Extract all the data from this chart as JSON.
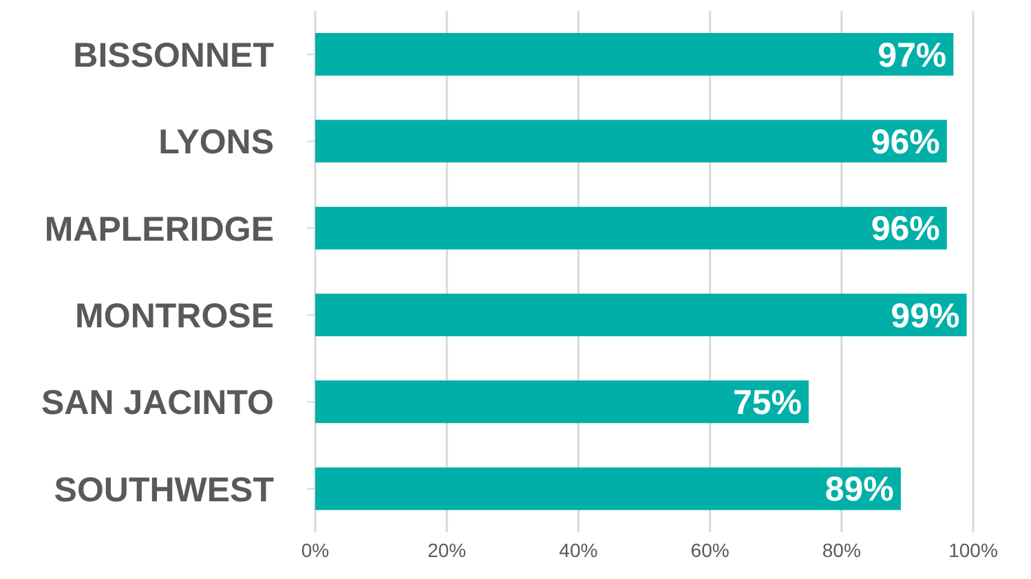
{
  "chart_data": {
    "type": "bar",
    "orientation": "horizontal",
    "categories": [
      "BISSONNET",
      "LYONS",
      "MAPLERIDGE",
      "MONTROSE",
      "SAN JACINTO",
      "SOUTHWEST"
    ],
    "values": [
      97,
      96,
      96,
      99,
      75,
      89
    ],
    "value_labels": [
      "97%",
      "96%",
      "96%",
      "99%",
      "75%",
      "89%"
    ],
    "color": "#00b0a8",
    "xlim": [
      0,
      100
    ],
    "xticks": [
      {
        "value": 0,
        "label": "0%"
      },
      {
        "value": 20,
        "label": "20%"
      },
      {
        "value": 40,
        "label": "40%"
      },
      {
        "value": 60,
        "label": "60%"
      },
      {
        "value": 80,
        "label": "80%"
      },
      {
        "value": 100,
        "label": "100%"
      }
    ],
    "grid": "x"
  }
}
